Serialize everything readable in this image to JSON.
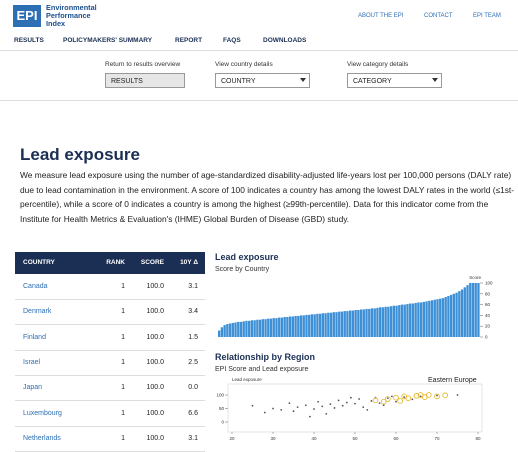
{
  "header": {
    "logo_mark": "EPI",
    "logo_text": [
      "Environmental",
      "Performance",
      "Index"
    ],
    "top_links": [
      "ABOUT THE EPI",
      "CONTACT",
      "EPI TEAM"
    ],
    "nav": [
      "RESULTS",
      "POLICYMAKERS' SUMMARY",
      "REPORT",
      "FAQS",
      "DOWNLOADS"
    ]
  },
  "controls": [
    {
      "label": "Return to results overview",
      "value": "RESULTS"
    },
    {
      "label": "View country details",
      "value": "COUNTRY"
    },
    {
      "label": "View category details",
      "value": "CATEGORY"
    }
  ],
  "heading": "Lead exposure",
  "description": "We measure lead exposure using the number of age-standardized disability-adjusted life-years lost per 100,000 persons (DALY rate) due to lead contamination in the environment. A score of 100 indicates a country has among the lowest DALY rates in the world (≤1st-percentile), while a score of 0 indicates a country is among the highest (≥99th-percentile). Data for this indicator come from the Institute for Health Metrics & Evaluation's (IHME) Global Burden of Disease (GBD) study.",
  "table": {
    "columns": [
      "COUNTRY",
      "RANK",
      "SCORE",
      "10Y Δ"
    ],
    "rows": [
      [
        "Canada",
        "1",
        "100.0",
        "3.1"
      ],
      [
        "Denmark",
        "1",
        "100.0",
        "3.4"
      ],
      [
        "Finland",
        "1",
        "100.0",
        "1.5"
      ],
      [
        "Israel",
        "1",
        "100.0",
        "2.5"
      ],
      [
        "Japan",
        "1",
        "100.0",
        "0.0"
      ],
      [
        "Luxembourg",
        "1",
        "100.0",
        "6.6"
      ],
      [
        "Netherlands",
        "1",
        "100.0",
        "3.1"
      ]
    ]
  },
  "chart_data": [
    {
      "type": "bar",
      "title": "Lead exposure",
      "subtitle": "Score by Country",
      "y_label": "Score",
      "color": "#3d8fd6",
      "ylim": [
        0,
        100
      ],
      "yticks": [
        0,
        20,
        40,
        60,
        80,
        100
      ],
      "values": [
        12,
        18,
        22,
        24,
        25,
        26,
        27,
        28,
        28,
        29,
        30,
        30,
        31,
        31,
        32,
        32,
        33,
        33,
        34,
        34,
        35,
        35,
        36,
        36,
        37,
        37,
        38,
        38,
        39,
        39,
        40,
        40,
        41,
        41,
        42,
        42,
        43,
        43,
        44,
        44,
        45,
        45,
        46,
        46,
        47,
        47,
        48,
        48,
        49,
        49,
        50,
        50,
        51,
        51,
        52,
        52,
        53,
        53,
        54,
        55,
        55,
        56,
        56,
        57,
        58,
        58,
        59,
        60,
        60,
        61,
        62,
        62,
        63,
        64,
        64,
        65,
        66,
        67,
        68,
        69,
        70,
        71,
        72,
        74,
        76,
        78,
        80,
        82,
        85,
        88,
        92,
        96,
        100,
        100,
        100,
        100
      ]
    },
    {
      "type": "scatter",
      "title": "Relationship by Region",
      "subtitle": "EPI Score and Lead exposure",
      "y_label": "Lead exposure",
      "xlim": [
        20,
        80
      ],
      "ylim": [
        0,
        100
      ],
      "xticks": [
        20,
        30,
        40,
        50,
        60,
        70,
        80
      ],
      "yticks": [
        0,
        50,
        100
      ],
      "series": [
        {
          "color": "#555555",
          "x": [
            25,
            28,
            30,
            32,
            34,
            35,
            36,
            38,
            40,
            41,
            42,
            44,
            45,
            46,
            47,
            48,
            50,
            51,
            52,
            54,
            55,
            56,
            57,
            58,
            60,
            62,
            64,
            66,
            70,
            75,
            43,
            39,
            53,
            49,
            59
          ],
          "values": [
            60,
            35,
            50,
            45,
            70,
            40,
            55,
            62,
            48,
            75,
            58,
            66,
            52,
            80,
            60,
            72,
            68,
            85,
            55,
            78,
            90,
            70,
            62,
            88,
            75,
            92,
            84,
            95,
            98,
            100,
            30,
            20,
            45,
            90,
            95
          ]
        },
        {
          "name": "Eastern Europe",
          "color": "#e8b830",
          "x": [
            55,
            58,
            60,
            62,
            63,
            65,
            67,
            68,
            70,
            72,
            61,
            57,
            66
          ],
          "values": [
            80,
            85,
            90,
            95,
            88,
            97,
            92,
            100,
            95,
            99,
            78,
            75,
            100
          ]
        }
      ]
    }
  ]
}
